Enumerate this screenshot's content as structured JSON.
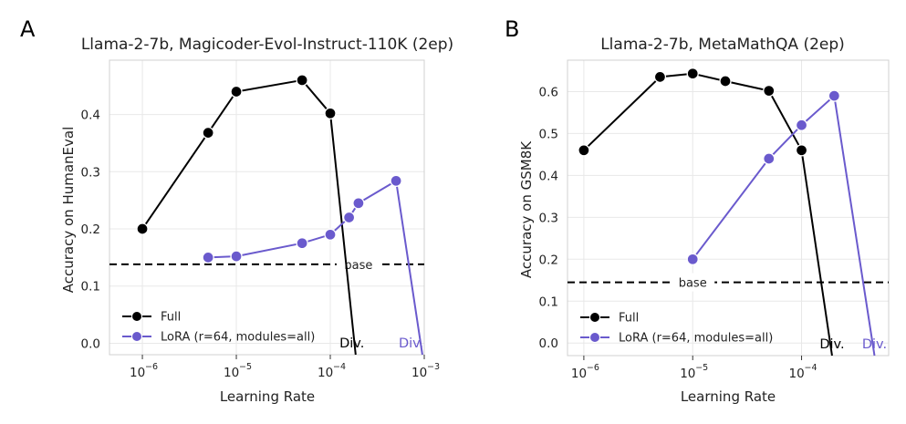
{
  "colors": {
    "full": "#000000",
    "lora": "#6a5acd",
    "base": "#000000"
  },
  "chart_data": [
    {
      "panel": "A",
      "type": "line",
      "title": "Llama-2-7b, Magicoder-Evol-Instruct-110K (2ep)",
      "xlabel": "Learning Rate",
      "ylabel": "Accuracy on HumanEval",
      "xscale": "log",
      "xlim_log10": [
        -6.35,
        -3.0
      ],
      "ylim": [
        -0.02,
        0.495
      ],
      "xticks": [
        {
          "exp": -6,
          "base": "10",
          "sup": "−6"
        },
        {
          "exp": -5,
          "base": "10",
          "sup": "−5"
        },
        {
          "exp": -4,
          "base": "10",
          "sup": "−4"
        },
        {
          "exp": -3,
          "base": "10",
          "sup": "−3"
        }
      ],
      "yticks": [
        {
          "v": 0.0,
          "label": "0.0"
        },
        {
          "v": 0.1,
          "label": "0.1"
        },
        {
          "v": 0.2,
          "label": "0.2"
        },
        {
          "v": 0.3,
          "label": "0.3"
        },
        {
          "v": 0.4,
          "label": "0.4"
        }
      ],
      "baseline": {
        "value": 0.138,
        "label": "base",
        "label_at_log10": -3.7
      },
      "series": [
        {
          "name": "Full",
          "color_key": "full",
          "points": [
            [
              -6.0,
              0.2
            ],
            [
              -5.3,
              0.368
            ],
            [
              -5.0,
              0.44
            ],
            [
              -4.3,
              0.46
            ],
            [
              -4.0,
              0.402
            ]
          ],
          "div_x": -3.73,
          "div_label": "Div.",
          "div_label_at": -3.77
        },
        {
          "name": "LoRA (r=64, modules=all)",
          "color_key": "lora",
          "points": [
            [
              -5.3,
              0.15
            ],
            [
              -5.0,
              0.152
            ],
            [
              -4.3,
              0.175
            ],
            [
              -4.0,
              0.19
            ],
            [
              -3.8,
              0.22
            ],
            [
              -3.7,
              0.245
            ],
            [
              -3.3,
              0.284
            ]
          ],
          "div_x": -3.02,
          "div_label": "Div.",
          "div_label_at": -3.14
        }
      ],
      "legend": {
        "position": "lower-left",
        "entries": [
          "Full",
          "LoRA (r=64, modules=all)"
        ]
      }
    },
    {
      "panel": "B",
      "type": "line",
      "title": "Llama-2-7b, MetaMathQA (2ep)",
      "xlabel": "Learning Rate",
      "ylabel": "Accuracy on GSM8K",
      "xscale": "log",
      "xlim_log10": [
        -6.15,
        -3.2
      ],
      "ylim": [
        -0.03,
        0.675
      ],
      "xticks": [
        {
          "exp": -6,
          "base": "10",
          "sup": "−6"
        },
        {
          "exp": -5,
          "base": "10",
          "sup": "−5"
        },
        {
          "exp": -4,
          "base": "10",
          "sup": "−4"
        }
      ],
      "yticks": [
        {
          "v": 0.0,
          "label": "0.0"
        },
        {
          "v": 0.1,
          "label": "0.1"
        },
        {
          "v": 0.2,
          "label": "0.2"
        },
        {
          "v": 0.3,
          "label": "0.3"
        },
        {
          "v": 0.4,
          "label": "0.4"
        },
        {
          "v": 0.5,
          "label": "0.5"
        },
        {
          "v": 0.6,
          "label": "0.6"
        }
      ],
      "baseline": {
        "value": 0.145,
        "label": "base",
        "label_at_log10": -5.0
      },
      "series": [
        {
          "name": "Full",
          "color_key": "full",
          "points": [
            [
              -6.0,
              0.46
            ],
            [
              -5.3,
              0.635
            ],
            [
              -5.0,
              0.643
            ],
            [
              -4.7,
              0.625
            ],
            [
              -4.3,
              0.602
            ],
            [
              -4.0,
              0.46
            ]
          ],
          "div_x": -3.72,
          "div_label": "Div.",
          "div_label_at": -3.72
        },
        {
          "name": "LoRA (r=64, modules=all)",
          "color_key": "lora",
          "points": [
            [
              -5.0,
              0.2
            ],
            [
              -4.3,
              0.44
            ],
            [
              -4.0,
              0.52
            ],
            [
              -3.7,
              0.59
            ]
          ],
          "div_x": -3.33,
          "div_label": "Div.",
          "div_label_at": -3.33
        }
      ],
      "legend": {
        "position": "lower-left",
        "entries": [
          "Full",
          "LoRA (r=64, modules=all)"
        ]
      }
    }
  ]
}
